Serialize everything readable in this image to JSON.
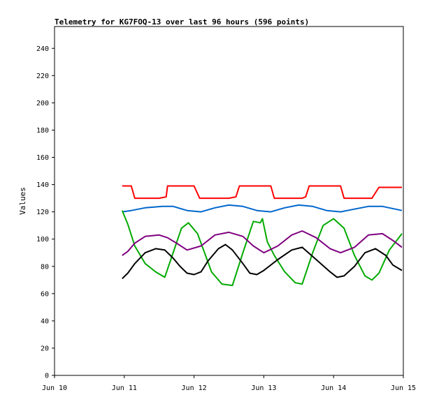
{
  "chart_data": {
    "type": "line",
    "title": "Telemetry for KG7FOQ-13 over last 96 hours (596 points)",
    "xlabel": "",
    "ylabel": "Values",
    "x_ticks": [
      "Jun 10",
      "Jun 11",
      "Jun 12",
      "Jun 13",
      "Jun 14",
      "Jun 15"
    ],
    "xlim": [
      0,
      5
    ],
    "ylim": [
      0,
      256
    ],
    "y_ticks": [
      0,
      20,
      40,
      60,
      80,
      100,
      120,
      140,
      160,
      180,
      200,
      220,
      240
    ],
    "grid": false,
    "series": [
      {
        "color": "#ff0000",
        "x": [
          0.97,
          1.1,
          1.15,
          1.5,
          1.6,
          1.62,
          2.0,
          2.08,
          2.5,
          2.6,
          2.65,
          3.1,
          3.15,
          3.55,
          3.6,
          3.65,
          4.1,
          4.15,
          4.55,
          4.65,
          4.98
        ],
        "y": [
          139,
          139,
          130,
          130,
          131,
          139,
          139,
          130,
          130,
          131,
          139,
          139,
          130,
          130,
          131,
          139,
          139,
          130,
          130,
          138,
          138
        ]
      },
      {
        "color": "#0066cc",
        "x": [
          0.97,
          1.1,
          1.3,
          1.55,
          1.7,
          1.9,
          2.1,
          2.3,
          2.5,
          2.7,
          2.9,
          3.1,
          3.3,
          3.5,
          3.7,
          3.9,
          4.1,
          4.3,
          4.5,
          4.7,
          4.98
        ],
        "y": [
          120,
          121,
          123,
          124,
          124,
          121,
          120,
          123,
          125,
          124,
          121,
          120,
          123,
          125,
          124,
          121,
          120,
          122,
          124,
          124,
          121
        ]
      },
      {
        "color": "#00aa00",
        "x": [
          0.97,
          1.05,
          1.15,
          1.3,
          1.45,
          1.58,
          1.7,
          1.82,
          1.92,
          2.05,
          2.15,
          2.25,
          2.4,
          2.55,
          2.7,
          2.85,
          2.95,
          2.98,
          3.05,
          3.15,
          3.3,
          3.45,
          3.55,
          3.7,
          3.85,
          4.0,
          4.15,
          4.3,
          4.45,
          4.55,
          4.65,
          4.8,
          4.98
        ],
        "y": [
          121,
          111,
          95,
          82,
          76,
          72,
          90,
          108,
          112,
          104,
          90,
          76,
          67,
          66,
          90,
          113,
          112,
          115,
          98,
          88,
          76,
          68,
          67,
          90,
          110,
          115,
          108,
          88,
          73,
          70,
          75,
          92,
          104
        ]
      },
      {
        "color": "#800080",
        "x": [
          0.97,
          1.05,
          1.15,
          1.3,
          1.5,
          1.62,
          1.75,
          1.9,
          2.1,
          2.3,
          2.5,
          2.7,
          2.85,
          3.0,
          3.2,
          3.4,
          3.55,
          3.75,
          3.95,
          4.1,
          4.3,
          4.5,
          4.7,
          4.85,
          4.98
        ],
        "y": [
          88,
          91,
          97,
          102,
          103,
          101,
          97,
          92,
          95,
          103,
          105,
          102,
          95,
          90,
          95,
          103,
          106,
          101,
          93,
          90,
          94,
          103,
          104,
          99,
          94
        ]
      },
      {
        "color": "#000000",
        "x": [
          0.97,
          1.05,
          1.15,
          1.3,
          1.45,
          1.58,
          1.7,
          1.8,
          1.9,
          2.0,
          2.1,
          2.2,
          2.35,
          2.45,
          2.55,
          2.7,
          2.8,
          2.9,
          3.0,
          3.2,
          3.4,
          3.55,
          3.75,
          3.95,
          4.05,
          4.15,
          4.3,
          4.45,
          4.6,
          4.75,
          4.85,
          4.98
        ],
        "y": [
          71,
          75,
          82,
          90,
          93,
          92,
          86,
          80,
          75,
          74,
          76,
          84,
          93,
          96,
          92,
          82,
          75,
          74,
          77,
          85,
          92,
          94,
          85,
          76,
          72,
          73,
          80,
          90,
          93,
          88,
          81,
          77
        ]
      }
    ]
  }
}
